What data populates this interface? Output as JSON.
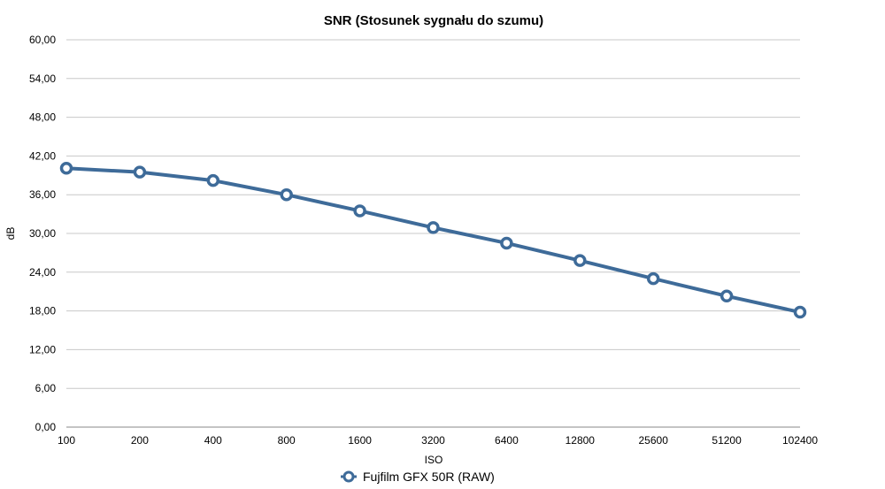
{
  "chart_data": {
    "type": "line",
    "title": "SNR (Stosunek sygnału do szumu)",
    "xlabel": "ISO",
    "ylabel": "dB",
    "categories": [
      "100",
      "200",
      "400",
      "800",
      "1600",
      "3200",
      "6400",
      "12800",
      "25600",
      "51200",
      "102400"
    ],
    "y_ticks": [
      "0,00",
      "6,00",
      "12,00",
      "18,00",
      "24,00",
      "30,00",
      "36,00",
      "42,00",
      "48,00",
      "54,00",
      "60,00"
    ],
    "ylim": [
      0,
      60
    ],
    "grid": true,
    "legend_position": "bottom",
    "series": [
      {
        "name": "Fujfilm GFX 50R (RAW)",
        "color": "#3e6b99",
        "values": [
          40.1,
          39.5,
          38.2,
          36.0,
          33.5,
          30.9,
          28.5,
          25.8,
          23.0,
          20.3,
          17.8
        ]
      }
    ]
  }
}
